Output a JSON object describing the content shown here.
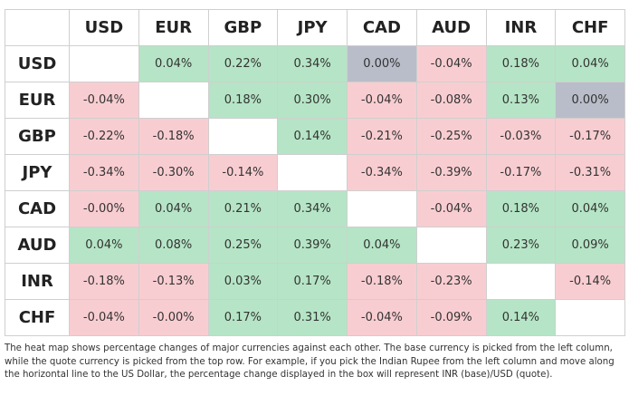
{
  "table": {
    "columns": [
      "USD",
      "EUR",
      "GBP",
      "JPY",
      "CAD",
      "AUD",
      "INR",
      "CHF"
    ],
    "rows": [
      {
        "label": "USD",
        "cells": [
          null,
          "0.04%",
          "0.22%",
          "0.34%",
          "0.00%",
          "-0.04%",
          "0.18%",
          "0.04%"
        ]
      },
      {
        "label": "EUR",
        "cells": [
          "-0.04%",
          null,
          "0.18%",
          "0.30%",
          "-0.04%",
          "-0.08%",
          "0.13%",
          "0.00%"
        ]
      },
      {
        "label": "GBP",
        "cells": [
          "-0.22%",
          "-0.18%",
          null,
          "0.14%",
          "-0.21%",
          "-0.25%",
          "-0.03%",
          "-0.17%"
        ]
      },
      {
        "label": "JPY",
        "cells": [
          "-0.34%",
          "-0.30%",
          "-0.14%",
          null,
          "-0.34%",
          "-0.39%",
          "-0.17%",
          "-0.31%"
        ]
      },
      {
        "label": "CAD",
        "cells": [
          "-0.00%",
          "0.04%",
          "0.21%",
          "0.34%",
          null,
          "-0.04%",
          "0.18%",
          "0.04%"
        ]
      },
      {
        "label": "AUD",
        "cells": [
          "0.04%",
          "0.08%",
          "0.25%",
          "0.39%",
          "0.04%",
          null,
          "0.23%",
          "0.09%"
        ]
      },
      {
        "label": "INR",
        "cells": [
          "-0.18%",
          "-0.13%",
          "0.03%",
          "0.17%",
          "-0.18%",
          "-0.23%",
          null,
          "-0.14%"
        ]
      },
      {
        "label": "CHF",
        "cells": [
          "-0.04%",
          "-0.00%",
          "0.17%",
          "0.31%",
          "-0.04%",
          "-0.09%",
          "0.14%",
          null
        ]
      }
    ]
  },
  "caption": "The heat map shows percentage changes of major currencies against each other. The base currency is picked from the left column, while the quote currency is picked from the top row. For example, if you pick the Indian Rupee from the left column and move along the horizontal line to the US Dollar, the percentage change displayed in the box will represent INR (base)/USD (quote)."
}
